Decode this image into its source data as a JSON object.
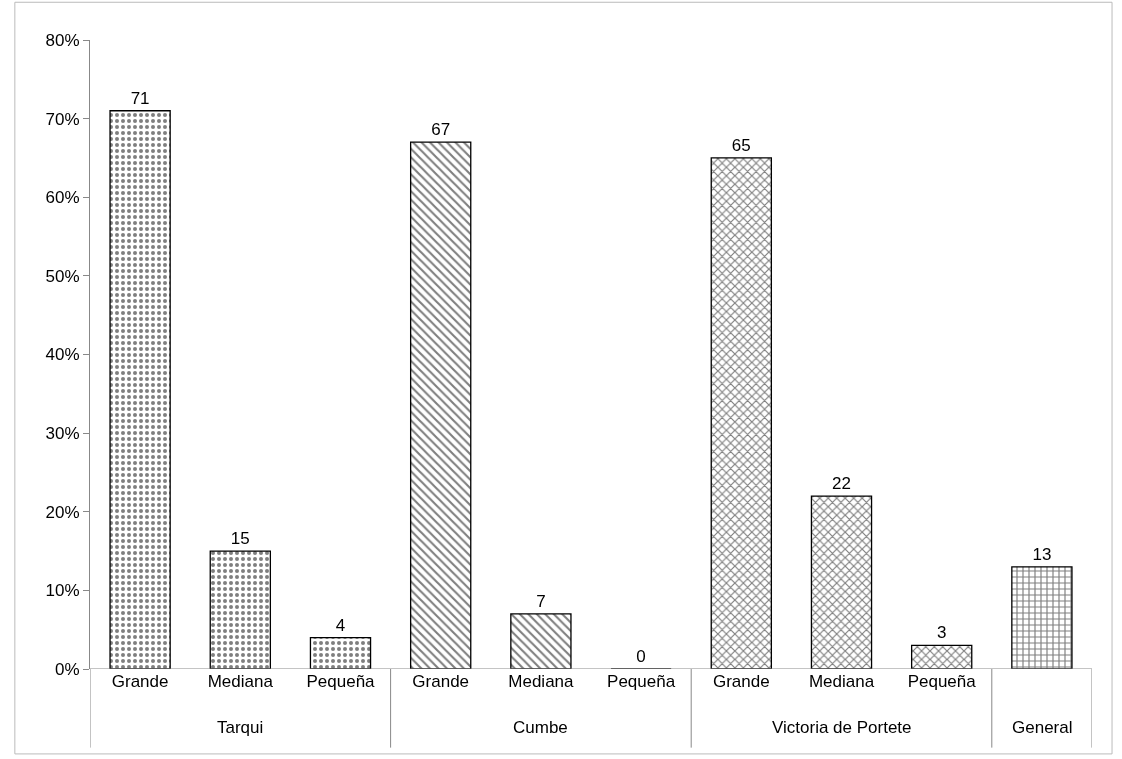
{
  "chart_data": {
    "type": "bar",
    "categories": [
      "Grande",
      "Mediana",
      "Pequeña",
      "Grande",
      "Mediana",
      "Pequeña",
      "Grande",
      "Mediana",
      "Pequeña",
      null
    ],
    "values": [
      71,
      15,
      4,
      67,
      7,
      0,
      65,
      22,
      3,
      13
    ],
    "color": "#000000",
    "data_labels": true,
    "ylim": [
      0,
      80
    ],
    "yticks": [
      {
        "value": 0,
        "label": "0%"
      },
      {
        "value": 10,
        "label": "10%"
      },
      {
        "value": 20,
        "label": "20%"
      },
      {
        "value": 30,
        "label": "30%"
      },
      {
        "value": 40,
        "label": "40%"
      },
      {
        "value": 50,
        "label": "50%"
      },
      {
        "value": 60,
        "label": "60%"
      },
      {
        "value": 70,
        "label": "70%"
      },
      {
        "value": 80,
        "label": "80%"
      }
    ],
    "annotations": [
      "Tarqui",
      "Cumbe",
      "Victoria de Portete",
      "General"
    ]
  }
}
